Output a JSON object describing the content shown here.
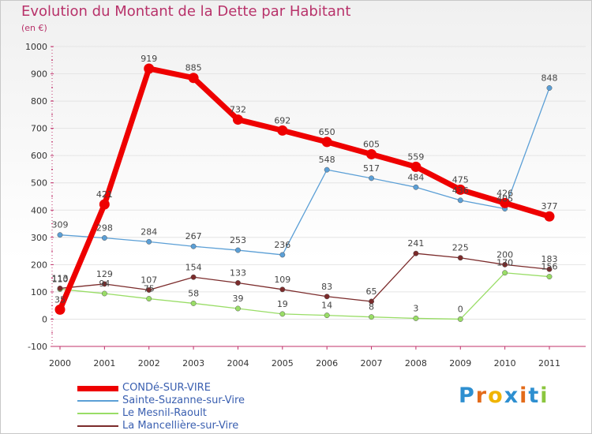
{
  "chart_data": {
    "type": "line",
    "title": "Evolution du Montant de la Dette par Habitant",
    "subtitle": "(en €)",
    "x": [
      "2000",
      "2001",
      "2002",
      "2003",
      "2004",
      "2005",
      "2006",
      "2007",
      "2008",
      "2009",
      "2010",
      "2011"
    ],
    "y_ticks": [
      "-100",
      "0",
      "100",
      "200",
      "300",
      "400",
      "500",
      "600",
      "700",
      "800",
      "900",
      "1000"
    ],
    "ylim": [
      -100,
      1000
    ],
    "grid": true,
    "series": [
      {
        "name": "CONDé-SUR-VIRE",
        "color": "#ee0000",
        "values": [
          35,
          421,
          919,
          885,
          732,
          692,
          650,
          605,
          559,
          475,
          426,
          377
        ],
        "labels": [
          "35",
          "421",
          "919",
          "885",
          "732",
          "692",
          "650",
          "605",
          "559",
          "475",
          "426",
          "377"
        ]
      },
      {
        "name": "Sainte-Suzanne-sur-Vire",
        "color": "#5b9fd6",
        "values": [
          309,
          298,
          284,
          267,
          253,
          236,
          548,
          517,
          484,
          436,
          405,
          848
        ],
        "labels": [
          "309",
          "298",
          "284",
          "267",
          "253",
          "236",
          "548",
          "517",
          "484",
          "436",
          "405",
          "848"
        ]
      },
      {
        "name": "Le Mesnil-Raoult",
        "color": "#99dd66",
        "values": [
          110,
          94,
          75,
          58,
          39,
          19,
          14,
          8,
          3,
          0,
          170,
          156
        ],
        "labels": [
          "110",
          "94",
          "75",
          "58",
          "39",
          "19",
          "14",
          "8",
          "3",
          "0",
          "170",
          "156"
        ]
      },
      {
        "name": "La Mancellière-sur-Vire",
        "color": "#7b2b2b",
        "values": [
          113,
          129,
          107,
          154,
          133,
          109,
          83,
          65,
          241,
          225,
          200,
          183
        ],
        "labels": [
          "113",
          "129",
          "107",
          "154",
          "133",
          "109",
          "83",
          "65",
          "241",
          "225",
          "200",
          "183"
        ]
      }
    ]
  },
  "brand": {
    "letters": [
      {
        "ch": "P",
        "color": "#2e8fd0"
      },
      {
        "ch": "r",
        "color": "#e36b1a"
      },
      {
        "ch": "o",
        "color": "#f0b400"
      },
      {
        "ch": "x",
        "color": "#2e8fd0"
      },
      {
        "ch": "i",
        "color": "#e36b1a"
      },
      {
        "ch": "t",
        "color": "#2e8fd0"
      },
      {
        "ch": "i",
        "color": "#8bc63e"
      }
    ]
  }
}
